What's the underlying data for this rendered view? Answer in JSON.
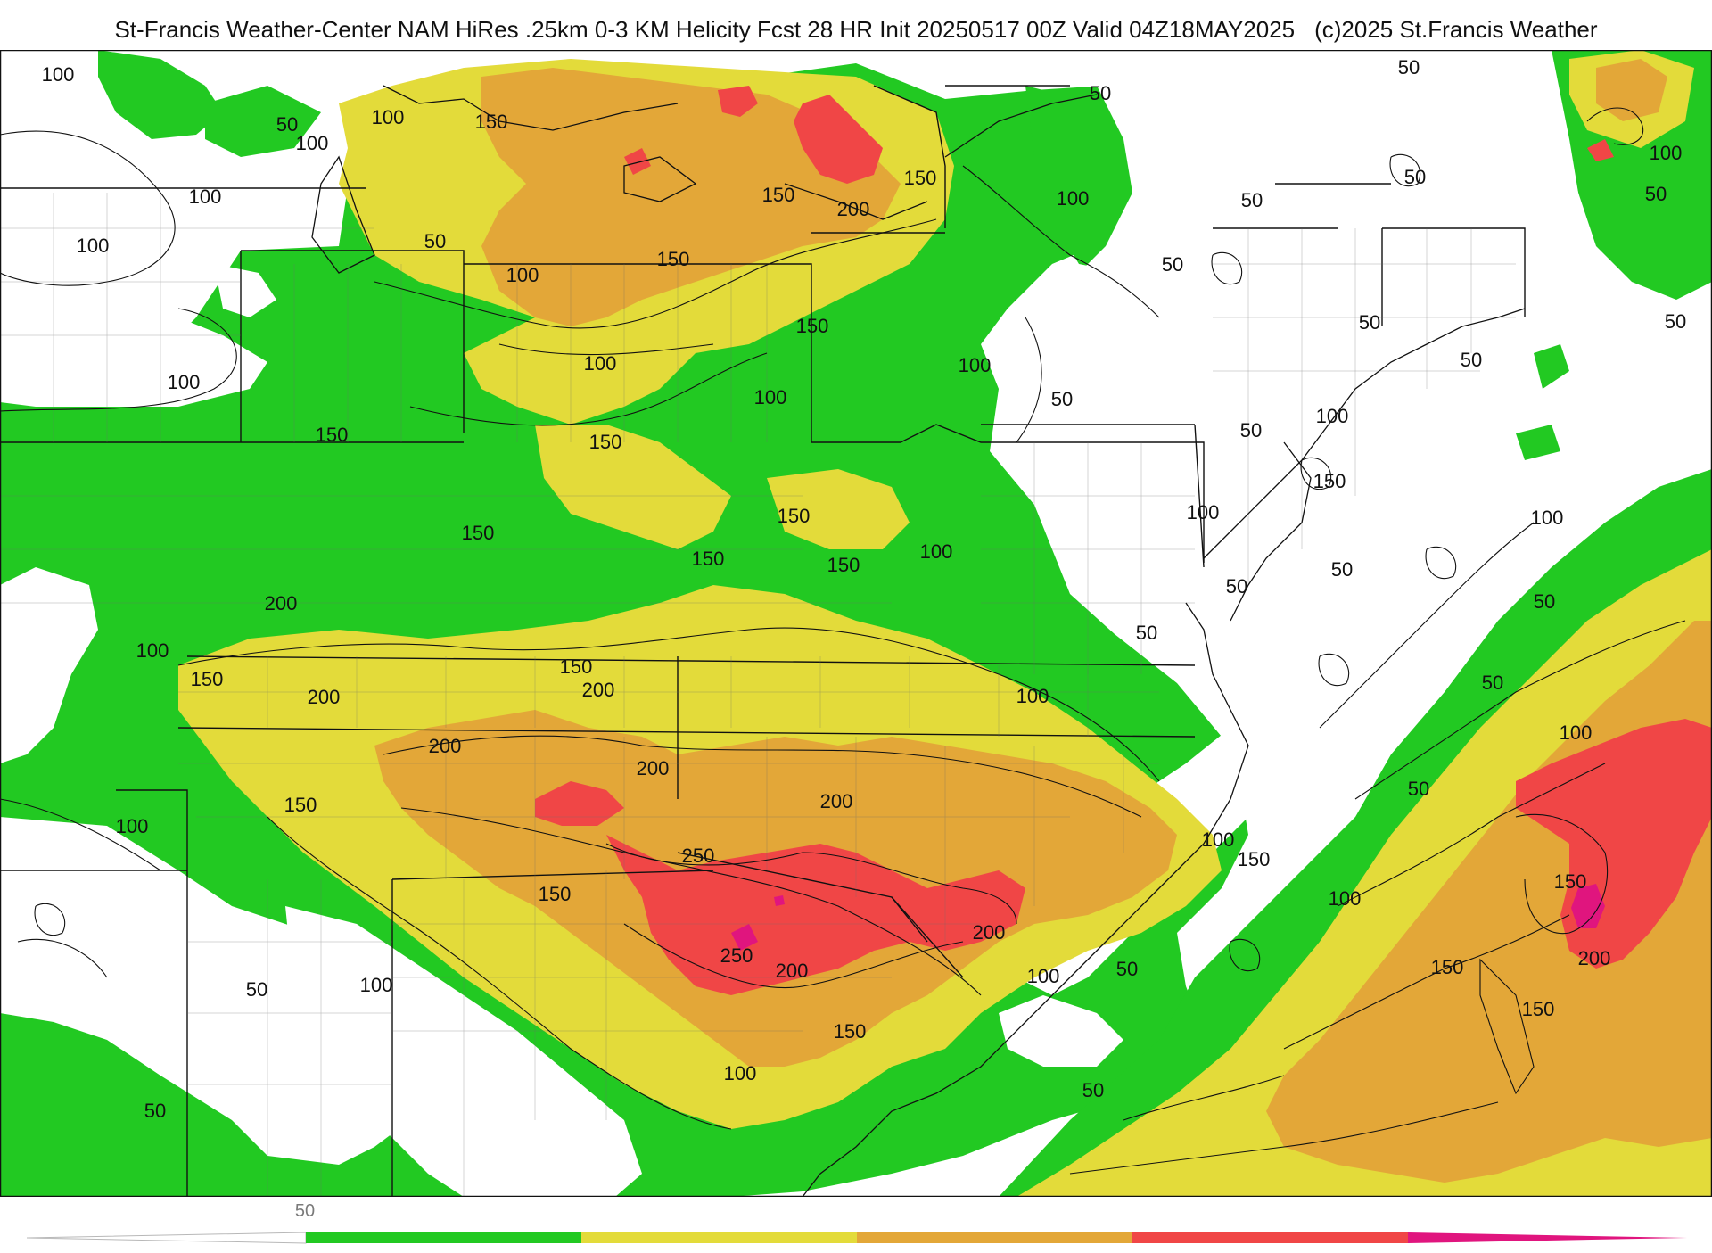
{
  "header": {
    "title": "St-Francis Weather-Center NAM HiRes .25km 0-3 KM Helicity Fcst 28 HR Init 20250517 00Z  Valid 04Z18MAY2025",
    "copyright": "(c)2025 St.Francis Weather"
  },
  "colors": {
    "below_50": "#ffffff",
    "from_50": "#22c922",
    "from_150": "#e3db3a",
    "from_200": "#e3a738",
    "from_250": "#f04646",
    "from_300": "#e0157e",
    "lines": "#111111"
  },
  "legend": {
    "label": "50",
    "bands": [
      {
        "value": 50,
        "color": "#22c922"
      },
      {
        "value": 150,
        "color": "#e3db3a"
      },
      {
        "value": 200,
        "color": "#e3a738"
      },
      {
        "value": 250,
        "color": "#f04646"
      },
      {
        "value": 300,
        "color": "#e0157e"
      }
    ]
  },
  "contour_labels": [
    {
      "text": "100"
    },
    {
      "text": "50"
    },
    {
      "text": "100"
    },
    {
      "text": "100"
    },
    {
      "text": "100"
    },
    {
      "text": "100"
    },
    {
      "text": "150"
    },
    {
      "text": "50"
    },
    {
      "text": "100"
    },
    {
      "text": "100"
    },
    {
      "text": "50"
    },
    {
      "text": "150"
    },
    {
      "text": "200"
    },
    {
      "text": "150"
    },
    {
      "text": "150"
    },
    {
      "text": "100"
    },
    {
      "text": "50"
    },
    {
      "text": "100"
    },
    {
      "text": "50"
    },
    {
      "text": "50"
    },
    {
      "text": "50"
    },
    {
      "text": "50"
    },
    {
      "text": "50"
    },
    {
      "text": "50"
    },
    {
      "text": "150"
    },
    {
      "text": "100"
    },
    {
      "text": "100"
    },
    {
      "text": "100"
    },
    {
      "text": "50"
    },
    {
      "text": "100"
    },
    {
      "text": "50"
    },
    {
      "text": "50"
    },
    {
      "text": "150"
    },
    {
      "text": "150"
    },
    {
      "text": "150"
    },
    {
      "text": "150"
    },
    {
      "text": "100"
    },
    {
      "text": "100"
    },
    {
      "text": "50"
    },
    {
      "text": "50"
    },
    {
      "text": "150"
    },
    {
      "text": "100"
    },
    {
      "text": "50"
    },
    {
      "text": "50"
    },
    {
      "text": "150"
    },
    {
      "text": "150"
    },
    {
      "text": "200"
    },
    {
      "text": "100"
    },
    {
      "text": "200"
    },
    {
      "text": "200"
    },
    {
      "text": "150"
    },
    {
      "text": "200"
    },
    {
      "text": "150"
    },
    {
      "text": "100"
    },
    {
      "text": "50"
    },
    {
      "text": "100"
    },
    {
      "text": "200"
    },
    {
      "text": "250"
    },
    {
      "text": "200"
    },
    {
      "text": "100"
    },
    {
      "text": "150"
    },
    {
      "text": "50"
    },
    {
      "text": "100"
    },
    {
      "text": "150"
    },
    {
      "text": "150"
    },
    {
      "text": "250"
    },
    {
      "text": "200"
    },
    {
      "text": "200"
    },
    {
      "text": "150"
    },
    {
      "text": "100"
    },
    {
      "text": "50"
    },
    {
      "text": "100"
    },
    {
      "text": "150"
    },
    {
      "text": "200"
    },
    {
      "text": "150"
    },
    {
      "text": "150"
    },
    {
      "text": "100"
    },
    {
      "text": "50"
    },
    {
      "text": "50"
    },
    {
      "text": "50"
    },
    {
      "text": "100"
    }
  ]
}
